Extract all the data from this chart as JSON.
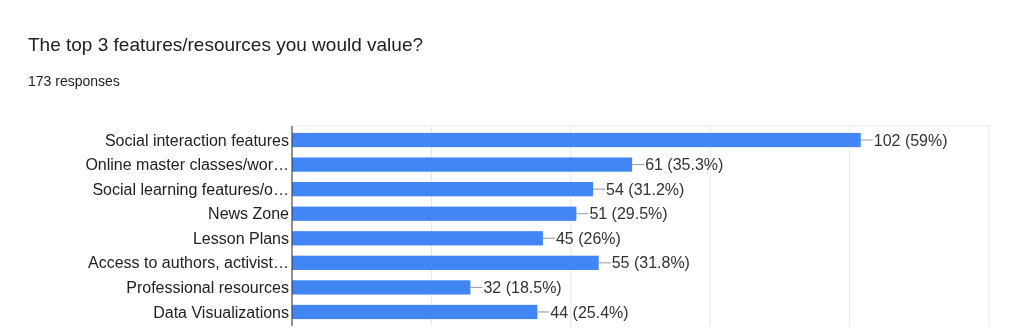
{
  "chart_data": {
    "type": "bar",
    "orientation": "horizontal",
    "title": "The top 3 features/resources you would value?",
    "subtitle": "173 responses",
    "categories": [
      "Social interaction features",
      "Online master classes/wor…",
      "Social learning features/o…",
      "News Zone",
      "Lesson Plans",
      "Access to authors, activist…",
      "Professional resources",
      "Data Visualizations"
    ],
    "values": [
      102,
      61,
      54,
      51,
      45,
      55,
      32,
      44
    ],
    "value_labels": [
      "102 (59%)",
      "61 (35.3%)",
      "54 (31.2%)",
      "51 (29.5%)",
      "45 (26%)",
      "55 (31.8%)",
      "32 (18.5%)",
      "44 (25.4%)"
    ],
    "color": "#4285f4",
    "xlim": [
      0,
      125
    ],
    "xticks": [
      {
        "value": 0,
        "label": null
      },
      {
        "value": 25,
        "label": null
      },
      {
        "value": 50,
        "label": null
      },
      {
        "value": 75,
        "label": null
      },
      {
        "value": 100,
        "label": null
      },
      {
        "value": 125,
        "label": null
      }
    ],
    "grid": "x",
    "tick_labels": "y"
  }
}
